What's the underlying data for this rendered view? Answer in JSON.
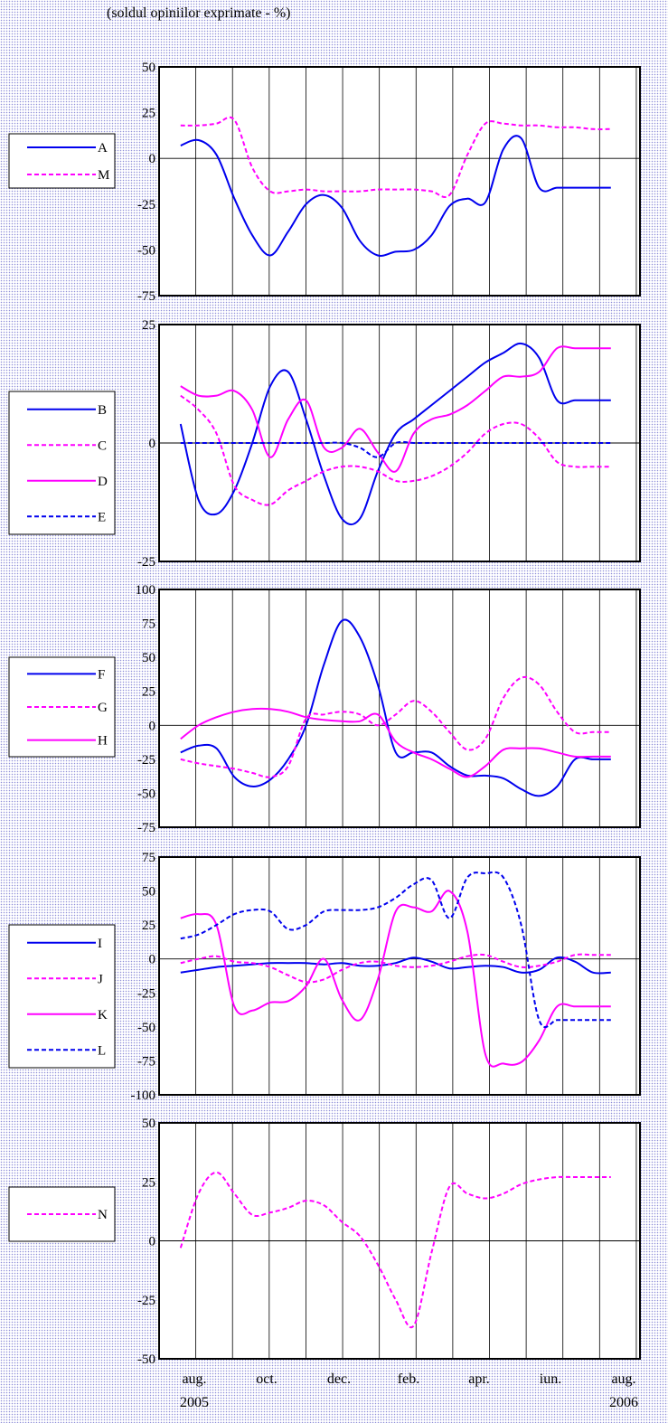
{
  "subtitle": "(soldul opiniilor exprimate - %)",
  "x_tick_labels": [
    {
      "label": "aug.",
      "year": "2005"
    },
    {
      "label": "oct.",
      "year": ""
    },
    {
      "label": "dec.",
      "year": ""
    },
    {
      "label": "feb.",
      "year": ""
    },
    {
      "label": "apr.",
      "year": ""
    },
    {
      "label": "iun.",
      "year": ""
    },
    {
      "label": "aug.",
      "year": "2006"
    }
  ],
  "colors": {
    "blue": "#0000ee",
    "magenta": "#ff00ff",
    "grid": "#000000"
  },
  "chart_data": [
    {
      "type": "line",
      "months": 13,
      "ylim": [
        -75,
        50
      ],
      "yticks": [
        50,
        25,
        0,
        -25,
        -50,
        -75
      ],
      "x": [
        0,
        0.5,
        1,
        1.5,
        2,
        2.5,
        3,
        3.5,
        4,
        4.5,
        5,
        5.5,
        6,
        6.5,
        7,
        7.5,
        8,
        8.5,
        9,
        9.5,
        10,
        10.5,
        11,
        11.5,
        12
      ],
      "series": [
        {
          "name": "A",
          "color": "#0000ee",
          "dash": false,
          "values": [
            7,
            10,
            2,
            -22,
            -42,
            -53,
            -40,
            -25,
            -20,
            -27,
            -45,
            -53,
            -51,
            -50,
            -42,
            -26,
            -22,
            -24,
            5,
            11,
            -16,
            -16,
            -16,
            -16,
            -16
          ]
        },
        {
          "name": "M",
          "color": "#ff00ff",
          "dash": true,
          "values": [
            18,
            18,
            19,
            21,
            -5,
            -18,
            -18,
            -17,
            -18,
            -18,
            -18,
            -17,
            -17,
            -17,
            -18,
            -20,
            2,
            19,
            19,
            18,
            18,
            17,
            17,
            16,
            16
          ]
        }
      ]
    },
    {
      "type": "line",
      "months": 13,
      "ylim": [
        -25,
        25
      ],
      "yticks": [
        25,
        0,
        -25
      ],
      "x": [
        0,
        0.5,
        1,
        1.5,
        2,
        2.5,
        3,
        3.5,
        4,
        4.5,
        5,
        5.5,
        6,
        6.5,
        7,
        7.5,
        8,
        8.5,
        9,
        9.5,
        10,
        10.5,
        11,
        11.5,
        12
      ],
      "series": [
        {
          "name": "B",
          "color": "#0000ee",
          "dash": false,
          "values": [
            4,
            -12,
            -15,
            -10,
            0,
            12,
            15,
            5,
            -7,
            -16,
            -16,
            -6,
            2,
            5,
            8,
            11,
            14,
            17,
            19,
            21,
            18,
            9,
            9,
            9,
            9
          ]
        },
        {
          "name": "C",
          "color": "#ff00ff",
          "dash": true,
          "values": [
            10,
            7,
            2,
            -9,
            -12,
            -13,
            -10,
            -8,
            -6,
            -5,
            -5,
            -6,
            -8,
            -8,
            -7,
            -5,
            -2,
            2,
            4,
            4,
            1,
            -4,
            -5,
            -5,
            -5
          ]
        },
        {
          "name": "D",
          "color": "#ff00ff",
          "dash": false,
          "values": [
            12,
            10,
            10,
            11,
            7,
            -3,
            5,
            9,
            -1,
            -1,
            3,
            -2,
            -6,
            2,
            5,
            6,
            8,
            11,
            14,
            14,
            15,
            20,
            20,
            20,
            20
          ]
        },
        {
          "name": "E",
          "color": "#0000ee",
          "dash": true,
          "values": [
            0,
            0,
            0,
            0,
            0,
            0,
            0,
            0,
            0,
            0,
            -1,
            -3,
            0,
            0,
            0,
            0,
            0,
            0,
            0,
            0,
            0,
            0,
            0,
            0,
            0
          ]
        }
      ]
    },
    {
      "type": "line",
      "months": 13,
      "ylim": [
        -75,
        100
      ],
      "yticks": [
        100,
        75,
        50,
        25,
        0,
        -25,
        -50,
        -75
      ],
      "x": [
        0,
        0.5,
        1,
        1.5,
        2,
        2.5,
        3,
        3.5,
        4,
        4.5,
        5,
        5.5,
        6,
        6.5,
        7,
        7.5,
        8,
        8.5,
        9,
        9.5,
        10,
        10.5,
        11,
        11.5,
        12
      ],
      "series": [
        {
          "name": "F",
          "color": "#0000ee",
          "dash": false,
          "values": [
            -20,
            -15,
            -17,
            -38,
            -45,
            -40,
            -25,
            0,
            45,
            77,
            65,
            30,
            -20,
            -20,
            -20,
            -30,
            -37,
            -37,
            -39,
            -47,
            -52,
            -45,
            -25,
            -25,
            -25
          ]
        },
        {
          "name": "G",
          "color": "#ff00ff",
          "dash": true,
          "values": [
            -25,
            -28,
            -30,
            -32,
            -35,
            -38,
            -30,
            5,
            8,
            10,
            8,
            0,
            8,
            18,
            10,
            -5,
            -18,
            -10,
            20,
            35,
            30,
            10,
            -5,
            -5,
            -5
          ]
        },
        {
          "name": "H",
          "color": "#ff00ff",
          "dash": false,
          "values": [
            -10,
            0,
            6,
            10,
            12,
            12,
            10,
            6,
            4,
            3,
            3,
            8,
            -12,
            -20,
            -25,
            -32,
            -38,
            -30,
            -18,
            -17,
            -17,
            -20,
            -23,
            -23,
            -23
          ]
        }
      ]
    },
    {
      "type": "line",
      "months": 13,
      "ylim": [
        -100,
        75
      ],
      "yticks": [
        75,
        50,
        25,
        0,
        -25,
        -50,
        -75,
        -100
      ],
      "x": [
        0,
        0.5,
        1,
        1.5,
        2,
        2.5,
        3,
        3.5,
        4,
        4.5,
        5,
        5.5,
        6,
        6.5,
        7,
        7.5,
        8,
        8.5,
        9,
        9.5,
        10,
        10.5,
        11,
        11.5,
        12
      ],
      "series": [
        {
          "name": "I",
          "color": "#0000ee",
          "dash": false,
          "values": [
            -10,
            -8,
            -6,
            -5,
            -4,
            -3,
            -3,
            -3,
            -4,
            -3,
            -5,
            -5,
            -3,
            1,
            -2,
            -7,
            -6,
            -5,
            -6,
            -10,
            -8,
            1,
            -2,
            -10,
            -10
          ]
        },
        {
          "name": "J",
          "color": "#ff00ff",
          "dash": true,
          "values": [
            -3,
            0,
            2,
            -2,
            -3,
            -6,
            -12,
            -17,
            -15,
            -8,
            -3,
            -2,
            -5,
            -6,
            -5,
            -2,
            2,
            3,
            -2,
            -6,
            -5,
            -2,
            3,
            3,
            3
          ]
        },
        {
          "name": "K",
          "color": "#ff00ff",
          "dash": false,
          "values": [
            30,
            33,
            25,
            -35,
            -38,
            -32,
            -31,
            -20,
            0,
            -30,
            -45,
            -15,
            35,
            38,
            35,
            50,
            20,
            -70,
            -77,
            -76,
            -60,
            -35,
            -35,
            -35,
            -35
          ]
        },
        {
          "name": "L",
          "color": "#0000ee",
          "dash": true,
          "values": [
            15,
            18,
            25,
            33,
            36,
            35,
            22,
            25,
            35,
            36,
            36,
            38,
            45,
            55,
            58,
            30,
            60,
            63,
            60,
            25,
            -45,
            -45,
            -45,
            -45,
            -45
          ]
        }
      ]
    },
    {
      "type": "line",
      "months": 13,
      "ylim": [
        -50,
        50
      ],
      "yticks": [
        50,
        25,
        0,
        -25,
        -50
      ],
      "x": [
        0,
        0.5,
        1,
        1.5,
        2,
        2.5,
        3,
        3.5,
        4,
        4.5,
        5,
        5.5,
        6,
        6.5,
        7,
        7.5,
        8,
        8.5,
        9,
        9.5,
        10,
        10.5,
        11,
        11.5,
        12
      ],
      "series": [
        {
          "name": "N",
          "color": "#ff00ff",
          "dash": true,
          "values": [
            -3,
            20,
            29,
            20,
            11,
            12,
            14,
            17,
            15,
            8,
            2,
            -10,
            -25,
            -36,
            -5,
            23,
            20,
            18,
            20,
            24,
            26,
            27,
            27,
            27,
            27
          ]
        }
      ]
    }
  ]
}
